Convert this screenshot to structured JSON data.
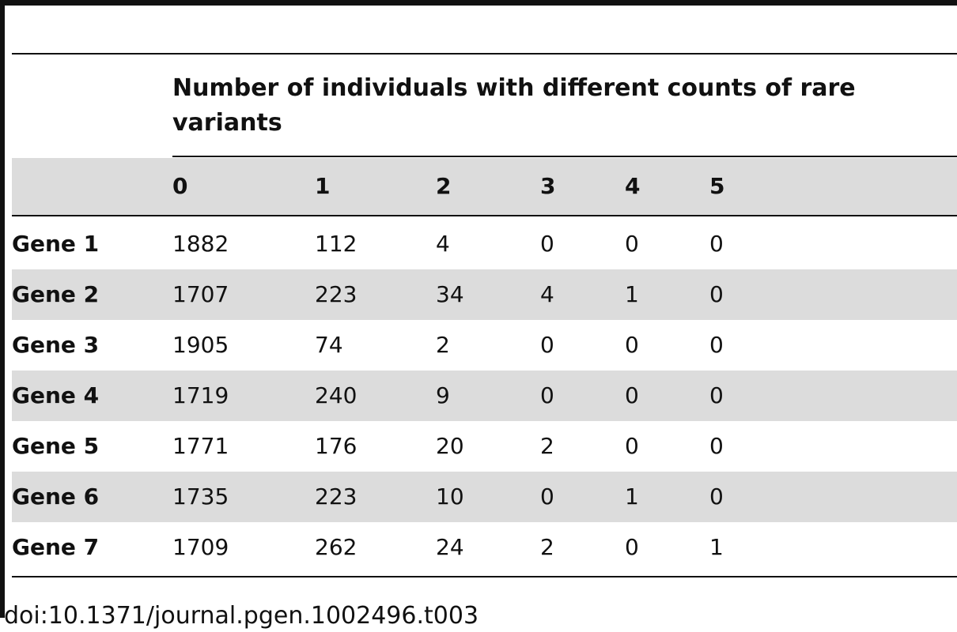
{
  "header": {
    "title": "Number of individuals with different counts of rare variants"
  },
  "table": {
    "columns": [
      0,
      1,
      2,
      3,
      4,
      5
    ],
    "rows": [
      [
        "Gene 1",
        1882,
        112,
        4,
        0,
        0,
        0
      ],
      [
        "Gene 2",
        1707,
        223,
        34,
        4,
        1,
        0
      ],
      [
        "Gene 3",
        1905,
        74,
        2,
        0,
        0,
        0
      ],
      [
        "Gene 4",
        1719,
        240,
        9,
        0,
        0,
        0
      ],
      [
        "Gene 5",
        1771,
        176,
        20,
        2,
        0,
        0
      ],
      [
        "Gene 6",
        1735,
        223,
        10,
        0,
        1,
        0
      ],
      [
        "Gene 7",
        1709,
        262,
        24,
        2,
        0,
        1
      ]
    ]
  },
  "footer": "doi:10.1371/journal.pgen.1002496.t003"
}
